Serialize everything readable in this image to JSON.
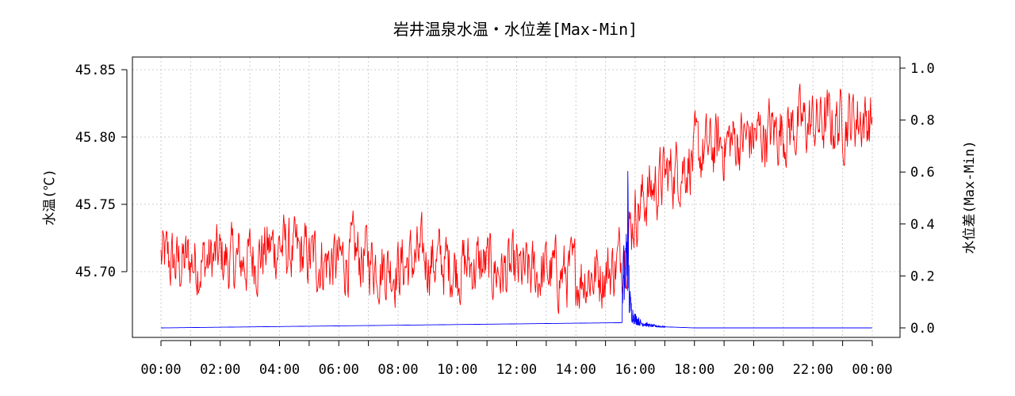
{
  "chart_data": {
    "type": "line",
    "title": "岩井温泉水温・水位差[Max-Min]",
    "xlabel": "",
    "ylabel_left": "水温(℃)",
    "ylabel_right": "水位差(Max-Min)",
    "x_ticks": [
      "00:00",
      "02:00",
      "04:00",
      "06:00",
      "08:00",
      "10:00",
      "12:00",
      "14:00",
      "16:00",
      "18:00",
      "20:00",
      "22:00",
      "00:00"
    ],
    "x_range_hours": [
      0,
      24
    ],
    "y_left_ticks": [
      "45.70",
      "45.75",
      "45.80",
      "45.85"
    ],
    "y_left_range": [
      45.66,
      45.86
    ],
    "y_right_ticks": [
      "0.0",
      "0.2",
      "0.4",
      "0.6",
      "0.8",
      "1.0"
    ],
    "y_right_range": [
      0.0,
      1.0
    ],
    "grid": true,
    "series": [
      {
        "axis": "left",
        "color": "#ff0000",
        "x_hours": [
          0,
          0.5,
          1,
          1.5,
          2,
          2.5,
          3,
          3.5,
          4,
          4.5,
          5,
          5.5,
          6,
          6.5,
          7,
          7.5,
          8,
          8.5,
          9,
          9.5,
          10,
          10.5,
          11,
          11.5,
          12,
          12.5,
          13,
          13.5,
          14,
          14.5,
          15,
          15.25,
          15.5,
          15.75,
          16,
          16.5,
          17,
          17.5,
          18,
          18.5,
          19,
          19.5,
          20,
          20.5,
          21,
          21.5,
          22,
          22.5,
          23,
          23.5,
          24
        ],
        "values": [
          45.71,
          45.705,
          45.708,
          45.707,
          45.71,
          45.706,
          45.71,
          45.715,
          45.72,
          45.712,
          45.71,
          45.708,
          45.706,
          45.712,
          45.71,
          45.705,
          45.703,
          45.708,
          45.71,
          45.706,
          45.704,
          45.705,
          45.703,
          45.7,
          45.698,
          45.697,
          45.7,
          45.698,
          45.697,
          45.698,
          45.7,
          45.702,
          45.71,
          45.725,
          45.745,
          45.76,
          45.77,
          45.778,
          45.785,
          45.79,
          45.795,
          45.798,
          45.8,
          45.803,
          45.806,
          45.808,
          45.81,
          45.81,
          45.812,
          45.815,
          45.812
        ],
        "noise_amplitude": 0.025
      },
      {
        "axis": "right",
        "color": "#0000ff",
        "x_hours": [
          0,
          15.55,
          15.6,
          15.65,
          15.7,
          15.75,
          15.8,
          15.9,
          16.0,
          16.2,
          16.5,
          17,
          18,
          24
        ],
        "values": [
          0.0,
          0.02,
          0.25,
          0.18,
          0.3,
          0.45,
          0.12,
          0.06,
          0.04,
          0.02,
          0.01,
          0.004,
          0.0,
          0.0
        ]
      }
    ]
  }
}
